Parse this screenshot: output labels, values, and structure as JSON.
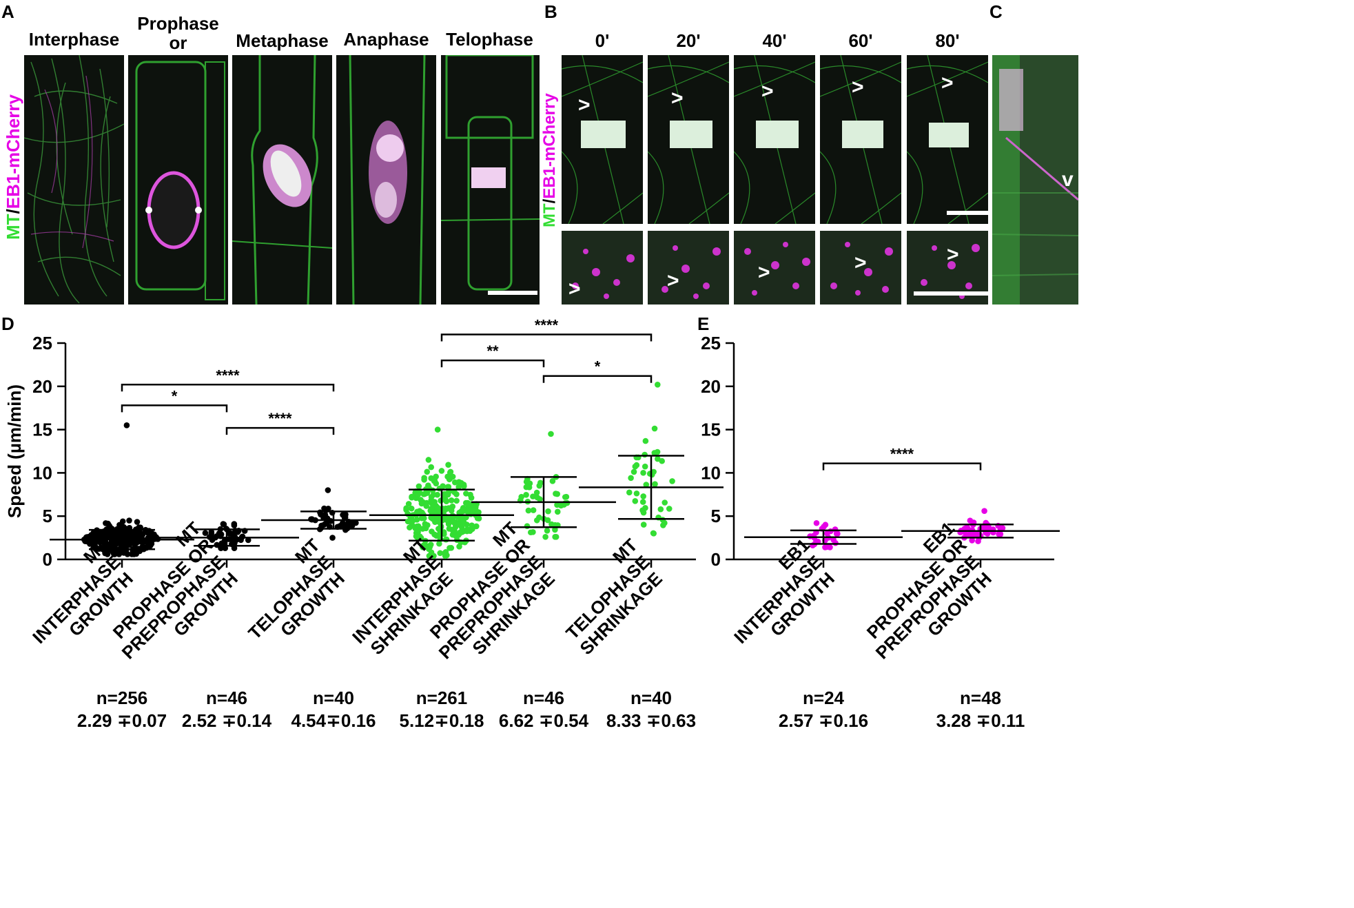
{
  "panel_labels": {
    "a": "A",
    "b": "B",
    "c": "C",
    "d": "D",
    "e": "E"
  },
  "panel_a": {
    "titles": [
      "Interphase",
      "Prophase or Preprophase",
      "Metaphase",
      "Anaphase",
      "Telophase"
    ],
    "ylabel_mt": "MT",
    "ylabel_slash": "/",
    "ylabel_eb1": "EB1-mCherry"
  },
  "panel_b": {
    "times": [
      "0'",
      "20'",
      "40'",
      "60'",
      "80'"
    ],
    "ylabel_mt": "MT",
    "ylabel_slash": "/",
    "ylabel_eb1": "EB1-mCherry",
    "arrow": ">"
  },
  "panel_c": {
    "arrow": "v"
  },
  "colors": {
    "green": "#33dd33",
    "magenta": "#e600e6",
    "black": "#000000"
  },
  "chart_data": [
    {
      "type": "scatter",
      "panel": "D",
      "ylabel": "Speed (µm/min)",
      "ylim": [
        0,
        25
      ],
      "yticks": [
        "0",
        "5",
        "10",
        "15",
        "20",
        "25"
      ],
      "categories": [
        [
          "MT",
          "INTERPHASE",
          "GROWTH"
        ],
        [
          "MT",
          "PROPHASE OR",
          "PREPROPHASE",
          "GROWTH"
        ],
        [
          "MT",
          "TELOPHASE",
          "GROWTH"
        ],
        [
          "MT",
          "INTERPHASE",
          "SHRINKAGE"
        ],
        [
          "MT",
          "PROPHASE OR",
          "PREPROPHASE",
          "SHRINKAGE"
        ],
        [
          "MT",
          "TELOPHASE",
          "SHRINKAGE"
        ]
      ],
      "series": [
        {
          "n": 256,
          "mean": 2.29,
          "sem": 0.07,
          "sd": 1.12,
          "min": 0.6,
          "max": 15.5,
          "color": "#000000"
        },
        {
          "n": 46,
          "mean": 2.52,
          "sem": 0.14,
          "sd": 0.95,
          "min": 1.3,
          "max": 4.1,
          "color": "#000000"
        },
        {
          "n": 40,
          "mean": 4.54,
          "sem": 0.16,
          "sd": 1.0,
          "min": 2.5,
          "max": 8.0,
          "color": "#000000"
        },
        {
          "n": 261,
          "mean": 5.12,
          "sem": 0.18,
          "sd": 2.95,
          "min": 0.4,
          "max": 15.0,
          "color": "#33dd33"
        },
        {
          "n": 46,
          "mean": 6.62,
          "sem": 0.54,
          "sd": 2.9,
          "min": 2.6,
          "max": 14.5,
          "color": "#33dd33"
        },
        {
          "n": 40,
          "mean": 8.33,
          "sem": 0.63,
          "sd": 3.65,
          "min": 3.0,
          "max": 20.2,
          "color": "#33dd33"
        }
      ],
      "n_labels": [
        "n=256",
        "n=46",
        "n=40",
        "n=261",
        "n=46",
        "n=40"
      ],
      "stat_labels": [
        "2.29 ∓0.07",
        "2.52 ∓0.14",
        "4.54∓0.16",
        "5.12∓0.18",
        "6.62 ∓0.54",
        "8.33 ∓0.63"
      ],
      "significance": [
        {
          "from": 0,
          "to": 1,
          "y": 17.8,
          "label": "*"
        },
        {
          "from": 0,
          "to": 2,
          "y": 20.2,
          "label": "****"
        },
        {
          "from": 1,
          "to": 2,
          "y": 15.2,
          "label": "****"
        },
        {
          "from": 3,
          "to": 4,
          "y": 23.0,
          "label": "**"
        },
        {
          "from": 3,
          "to": 5,
          "y": 26.0,
          "label": "****"
        },
        {
          "from": 4,
          "to": 5,
          "y": 21.2,
          "label": "*"
        }
      ]
    },
    {
      "type": "scatter",
      "panel": "E",
      "ylim": [
        0,
        25
      ],
      "yticks": [
        "0",
        "5",
        "10",
        "15",
        "20",
        "25"
      ],
      "categories": [
        [
          "EB1",
          "INTERPHASE",
          "GROWTH"
        ],
        [
          "EB1",
          "PROPHASE OR",
          "PREPROPHASE",
          "GROWTH"
        ]
      ],
      "series": [
        {
          "n": 24,
          "mean": 2.57,
          "sem": 0.16,
          "sd": 0.78,
          "min": 1.4,
          "max": 4.2,
          "color": "#e600e6"
        },
        {
          "n": 48,
          "mean": 3.28,
          "sem": 0.11,
          "sd": 0.76,
          "min": 2.1,
          "max": 5.6,
          "color": "#e600e6"
        }
      ],
      "n_labels": [
        "n=24",
        "n=48"
      ],
      "stat_labels": [
        "2.57 ∓0.16",
        "3.28 ∓0.11"
      ],
      "significance": [
        {
          "from": 0,
          "to": 1,
          "y": 11.1,
          "label": "****"
        }
      ]
    }
  ]
}
